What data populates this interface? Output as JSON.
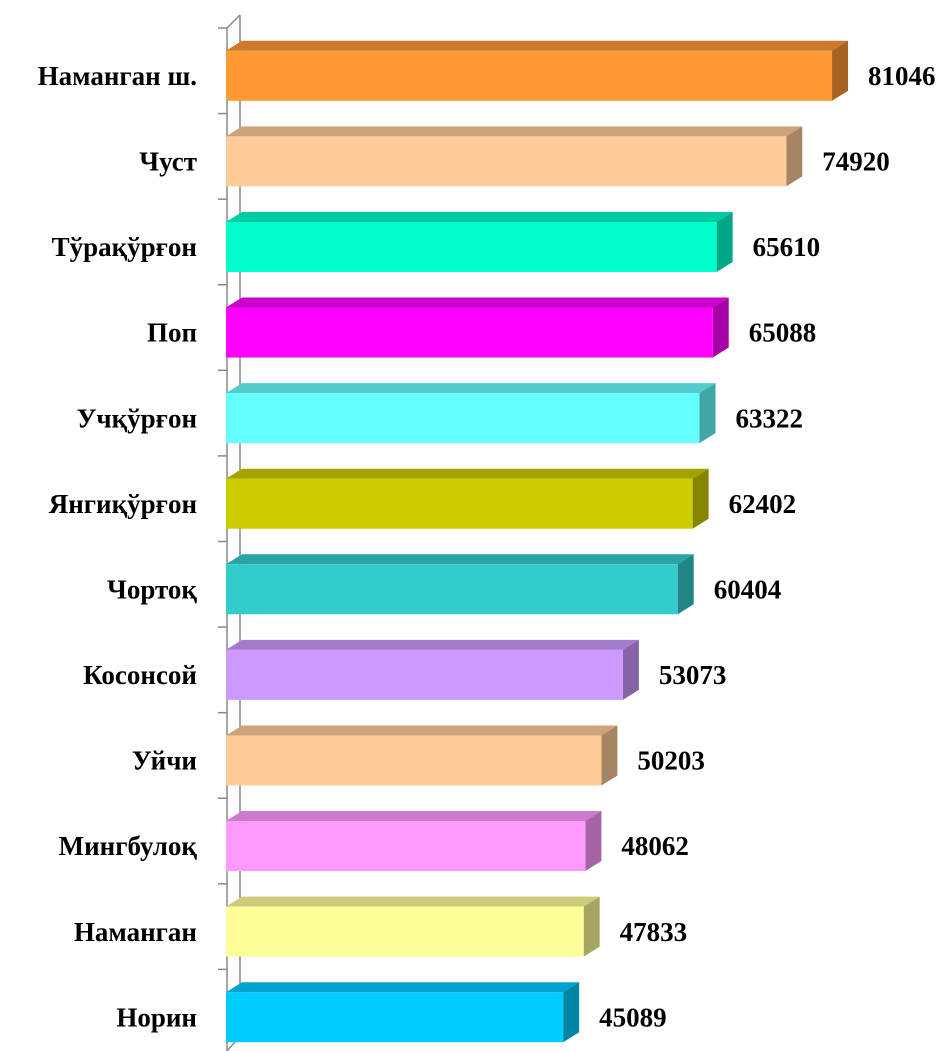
{
  "chart_data": {
    "type": "bar3d-horizontal",
    "categories": [
      "Наманган ш.",
      "Чуст",
      "Тўрақўрғон",
      "Поп",
      "Учқўрғон",
      "Янгиқўрғон",
      "Чортоқ",
      "Косонсой",
      "Уйчи",
      "Мингбулоқ",
      "Наманган",
      "Норин"
    ],
    "values": [
      81046,
      74920,
      65610,
      65088,
      63322,
      62402,
      60404,
      53073,
      50203,
      48062,
      47833,
      45089
    ],
    "colors": [
      "#FF9933",
      "#FFCC99",
      "#00FFCC",
      "#FF00FF",
      "#66FFFF",
      "#CCCC00",
      "#33CCCC",
      "#CC99FF",
      "#FFCC99",
      "#FF99FF",
      "#FFFF99",
      "#00CCFF"
    ],
    "xlim": [
      0,
      90000
    ]
  }
}
